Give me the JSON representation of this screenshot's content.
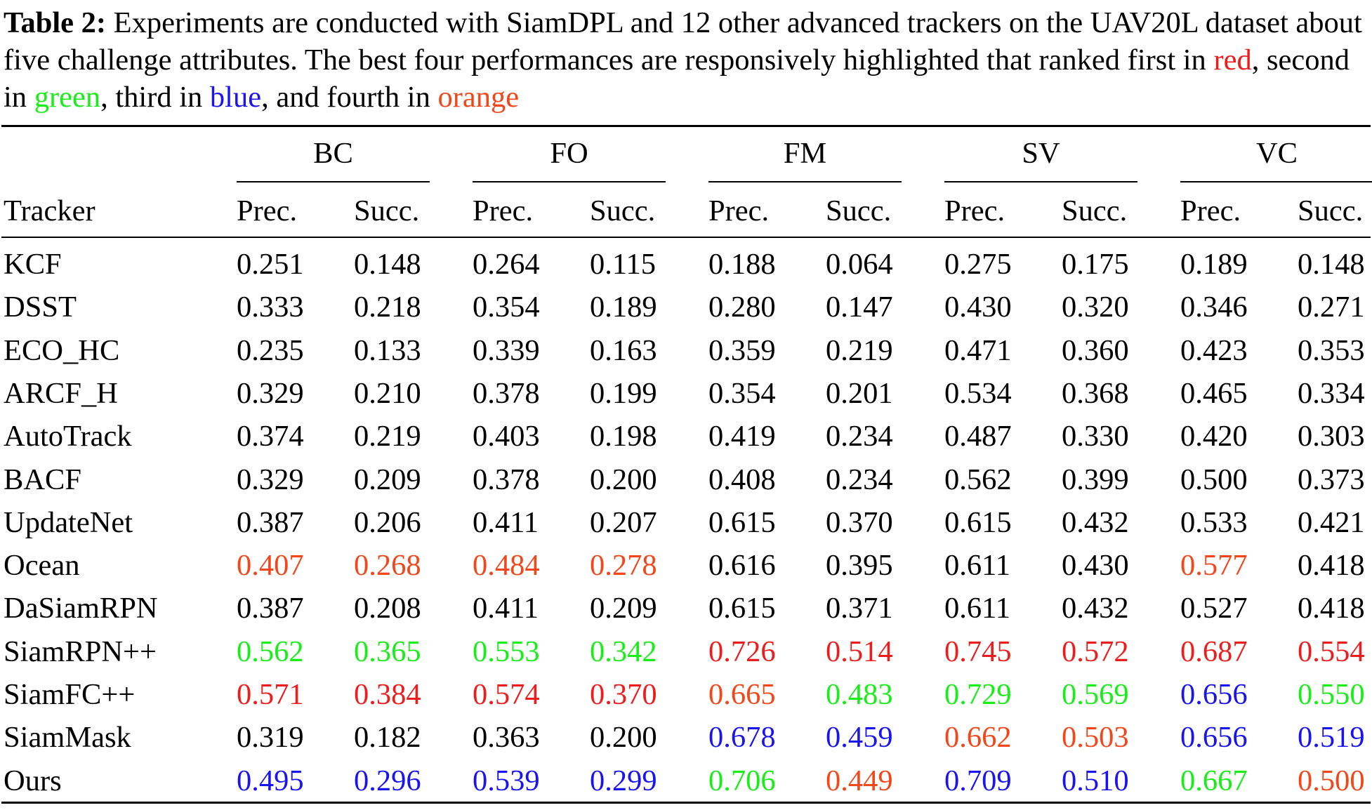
{
  "caption": {
    "label": "Table 2:",
    "text_1": "Experiments are conducted with SiamDPL and 12 other advanced trackers on the UAV20L dataset about five challenge attributes. The best four performances are responsively highlighted that ranked first in",
    "red_word": "red",
    "text_2": ", second in",
    "green_word": "green",
    "text_3": ", third in",
    "blue_word": "blue",
    "text_4": ", and fourth in",
    "orange_word": "orange"
  },
  "colors": {
    "red": "#ee1d1d",
    "green": "#19ee19",
    "blue": "#1a14ee",
    "orange": "#f2471a",
    "black": "#000000"
  },
  "table": {
    "tracker_header": "Tracker",
    "groups": [
      "BC",
      "FO",
      "FM",
      "SV",
      "VC"
    ],
    "subheaders": [
      "Prec.",
      "Succ."
    ],
    "rows": [
      {
        "name": "KCF",
        "values": [
          "0.251",
          "0.148",
          "0.264",
          "0.115",
          "0.188",
          "0.064",
          "0.275",
          "0.175",
          "0.189",
          "0.148"
        ],
        "colors": [
          "black",
          "black",
          "black",
          "black",
          "black",
          "black",
          "black",
          "black",
          "black",
          "black"
        ]
      },
      {
        "name": "DSST",
        "values": [
          "0.333",
          "0.218",
          "0.354",
          "0.189",
          "0.280",
          "0.147",
          "0.430",
          "0.320",
          "0.346",
          "0.271"
        ],
        "colors": [
          "black",
          "black",
          "black",
          "black",
          "black",
          "black",
          "black",
          "black",
          "black",
          "black"
        ]
      },
      {
        "name": "ECO_HC",
        "values": [
          "0.235",
          "0.133",
          "0.339",
          "0.163",
          "0.359",
          "0.219",
          "0.471",
          "0.360",
          "0.423",
          "0.353"
        ],
        "colors": [
          "black",
          "black",
          "black",
          "black",
          "black",
          "black",
          "black",
          "black",
          "black",
          "black"
        ]
      },
      {
        "name": "ARCF_H",
        "values": [
          "0.329",
          "0.210",
          "0.378",
          "0.199",
          "0.354",
          "0.201",
          "0.534",
          "0.368",
          "0.465",
          "0.334"
        ],
        "colors": [
          "black",
          "black",
          "black",
          "black",
          "black",
          "black",
          "black",
          "black",
          "black",
          "black"
        ]
      },
      {
        "name": "AutoTrack",
        "values": [
          "0.374",
          "0.219",
          "0.403",
          "0.198",
          "0.419",
          "0.234",
          "0.487",
          "0.330",
          "0.420",
          "0.303"
        ],
        "colors": [
          "black",
          "black",
          "black",
          "black",
          "black",
          "black",
          "black",
          "black",
          "black",
          "black"
        ]
      },
      {
        "name": "BACF",
        "values": [
          "0.329",
          "0.209",
          "0.378",
          "0.200",
          "0.408",
          "0.234",
          "0.562",
          "0.399",
          "0.500",
          "0.373"
        ],
        "colors": [
          "black",
          "black",
          "black",
          "black",
          "black",
          "black",
          "black",
          "black",
          "black",
          "black"
        ]
      },
      {
        "name": "UpdateNet",
        "values": [
          "0.387",
          "0.206",
          "0.411",
          "0.207",
          "0.615",
          "0.370",
          "0.615",
          "0.432",
          "0.533",
          "0.421"
        ],
        "colors": [
          "black",
          "black",
          "black",
          "black",
          "black",
          "black",
          "black",
          "black",
          "black",
          "black"
        ]
      },
      {
        "name": "Ocean",
        "values": [
          "0.407",
          "0.268",
          "0.484",
          "0.278",
          "0.616",
          "0.395",
          "0.611",
          "0.430",
          "0.577",
          "0.418"
        ],
        "colors": [
          "orange",
          "orange",
          "orange",
          "orange",
          "black",
          "black",
          "black",
          "black",
          "orange",
          "black"
        ]
      },
      {
        "name": "DaSiamRPN",
        "values": [
          "0.387",
          "0.208",
          "0.411",
          "0.209",
          "0.615",
          "0.371",
          "0.611",
          "0.432",
          "0.527",
          "0.418"
        ],
        "colors": [
          "black",
          "black",
          "black",
          "black",
          "black",
          "black",
          "black",
          "black",
          "black",
          "black"
        ]
      },
      {
        "name": "SiamRPN++",
        "values": [
          "0.562",
          "0.365",
          "0.553",
          "0.342",
          "0.726",
          "0.514",
          "0.745",
          "0.572",
          "0.687",
          "0.554"
        ],
        "colors": [
          "green",
          "green",
          "green",
          "green",
          "red",
          "red",
          "red",
          "red",
          "red",
          "red"
        ]
      },
      {
        "name": "SiamFC++",
        "values": [
          "0.571",
          "0.384",
          "0.574",
          "0.370",
          "0.665",
          "0.483",
          "0.729",
          "0.569",
          "0.656",
          "0.550"
        ],
        "colors": [
          "red",
          "red",
          "red",
          "red",
          "orange",
          "green",
          "green",
          "green",
          "blue",
          "green"
        ]
      },
      {
        "name": "SiamMask",
        "values": [
          "0.319",
          "0.182",
          "0.363",
          "0.200",
          "0.678",
          "0.459",
          "0.662",
          "0.503",
          "0.656",
          "0.519"
        ],
        "colors": [
          "black",
          "black",
          "black",
          "black",
          "blue",
          "blue",
          "orange",
          "orange",
          "blue",
          "blue"
        ]
      },
      {
        "name": "Ours",
        "values": [
          "0.495",
          "0.296",
          "0.539",
          "0.299",
          "0.706",
          "0.449",
          "0.709",
          "0.510",
          "0.667",
          "0.500"
        ],
        "colors": [
          "blue",
          "blue",
          "blue",
          "blue",
          "green",
          "orange",
          "blue",
          "blue",
          "green",
          "orange"
        ]
      }
    ]
  }
}
